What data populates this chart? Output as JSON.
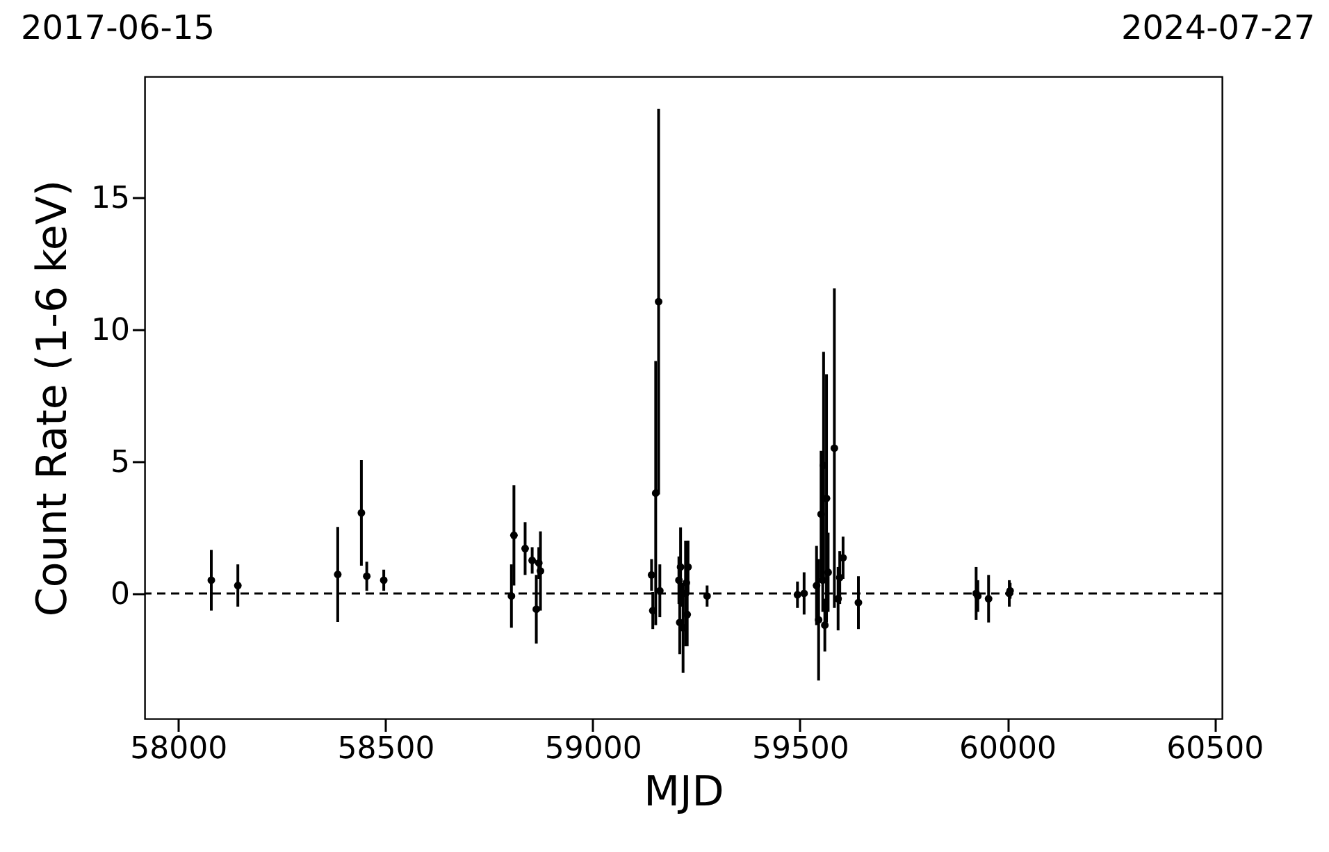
{
  "chart_data": {
    "type": "scatter",
    "xlabel": "MJD",
    "ylabel": "Count Rate (1-6 keV)",
    "annotations": [
      "2017-06-15",
      "2024-07-27"
    ],
    "xlim": [
      57919,
      60518
    ],
    "xticks": [
      58000,
      58500,
      59000,
      59500,
      60000,
      60500
    ],
    "ylim": [
      -4.74,
      19.58
    ],
    "yticks": [
      0,
      5,
      10,
      15
    ],
    "marker": "circle",
    "ref_lines": [
      {
        "axis": "y",
        "value": 0,
        "line_style": "dashed",
        "color": "#000000"
      }
    ],
    "series": [
      {
        "color": "#000000",
        "x": [
          58080,
          58144,
          58385,
          58442,
          58455,
          58496,
          58804,
          58810,
          58837,
          58854,
          58864,
          58870,
          58874,
          59142,
          59145,
          59152,
          59159,
          59162,
          59208,
          59210,
          59212,
          59218,
          59224,
          59226,
          59228,
          59230,
          59276,
          59494,
          59510,
          59540,
          59545,
          59551,
          59555,
          59557,
          59560,
          59564,
          59568,
          59583,
          59592,
          59596,
          59604,
          59641,
          59925,
          59929,
          59955,
          60005,
          60007
        ],
        "values": [
          0.5,
          0.3,
          0.72,
          3.05,
          0.65,
          0.5,
          -0.1,
          2.2,
          1.7,
          1.25,
          -0.6,
          1.15,
          0.85,
          0.7,
          -0.65,
          3.8,
          11.05,
          0.1,
          0.5,
          -1.1,
          1.0,
          -1.3,
          0.0,
          0.4,
          -0.8,
          1.0,
          -0.1,
          -0.05,
          0.0,
          0.3,
          -1.0,
          3.0,
          0.5,
          4.85,
          -1.2,
          3.6,
          0.8,
          5.5,
          -0.2,
          0.6,
          1.35,
          -0.35,
          0.0,
          -0.1,
          -0.2,
          0.0,
          0.1
        ],
        "errors": [
          1.15,
          0.8,
          1.8,
          2.0,
          0.55,
          0.4,
          1.2,
          1.9,
          1.0,
          0.5,
          1.3,
          0.6,
          1.5,
          0.6,
          0.7,
          5.0,
          7.3,
          1.0,
          0.9,
          1.2,
          1.5,
          1.7,
          2.0,
          1.0,
          1.2,
          1.0,
          0.4,
          0.5,
          0.8,
          1.5,
          2.3,
          2.4,
          1.2,
          4.3,
          1.0,
          4.7,
          1.5,
          6.05,
          1.2,
          1.0,
          0.8,
          1.0,
          1.0,
          0.6,
          0.9,
          0.5,
          0.3
        ]
      }
    ]
  }
}
